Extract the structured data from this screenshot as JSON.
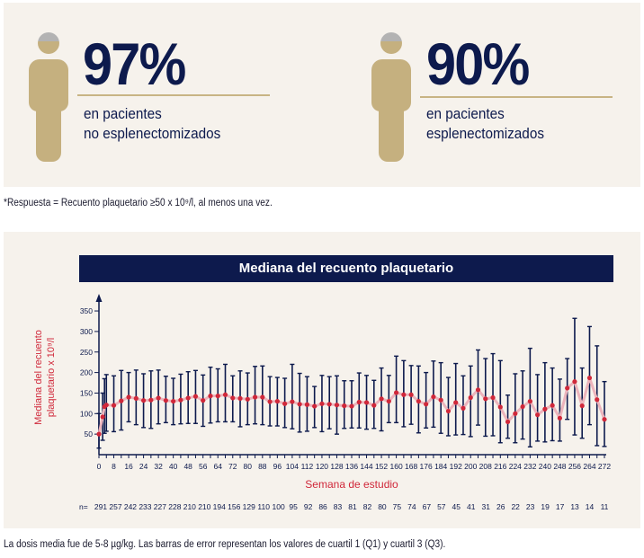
{
  "stats": [
    {
      "value": "97%",
      "line1": "en pacientes",
      "line2": "no esplenectomizados"
    },
    {
      "value": "90%",
      "line1": "en pacientes",
      "line2": "esplenectomizados"
    }
  ],
  "colors": {
    "navy": "#0d1a4d",
    "gold": "#c5b07f",
    "red": "#d0283a",
    "line": "#ecb4bc",
    "panel": "#f6f2ec"
  },
  "icons": {
    "person": "person-icon"
  },
  "footnote": "*Respuesta = Recuento plaquetario ≥50 x 10⁹/l, al menos una vez.",
  "bottom_note": "La dosis media fue de 5-8 µg/kg. Las barras de error representan los valores de cuartil 1 (Q1) y cuartil 3 (Q3).",
  "chart_data": {
    "type": "line",
    "title": "Mediana del recuento plaquetario",
    "ylabel_line1": "Mediana del recuento",
    "ylabel_line2": "plaquetario x 10⁹/l",
    "xlabel": "Semana de estudio",
    "ylim": [
      0,
      370
    ],
    "xlim": [
      0,
      272
    ],
    "yticks": [
      50,
      100,
      150,
      200,
      250,
      300,
      350
    ],
    "xticks": [
      0,
      8,
      16,
      24,
      32,
      40,
      48,
      56,
      64,
      72,
      80,
      88,
      96,
      104,
      112,
      120,
      128,
      136,
      144,
      152,
      160,
      168,
      176,
      184,
      192,
      200,
      208,
      216,
      224,
      232,
      240,
      248,
      256,
      264,
      272
    ],
    "x": [
      0,
      2,
      3,
      4,
      8,
      12,
      16,
      20,
      24,
      28,
      32,
      36,
      40,
      44,
      48,
      52,
      56,
      60,
      64,
      68,
      72,
      76,
      80,
      84,
      88,
      92,
      96,
      100,
      104,
      108,
      112,
      116,
      120,
      124,
      128,
      132,
      136,
      140,
      144,
      148,
      152,
      156,
      160,
      164,
      168,
      172,
      176,
      180,
      184,
      188,
      192,
      196,
      200,
      204,
      208,
      212,
      216,
      220,
      224,
      228,
      232,
      236,
      240,
      244,
      248,
      252,
      256,
      260,
      264,
      268,
      272
    ],
    "median": [
      50,
      92,
      117,
      121,
      120,
      131,
      140,
      137,
      132,
      133,
      138,
      132,
      130,
      133,
      138,
      142,
      132,
      143,
      143,
      146,
      138,
      137,
      135,
      140,
      140,
      129,
      130,
      124,
      129,
      123,
      122,
      118,
      124,
      123,
      121,
      119,
      118,
      128,
      127,
      120,
      136,
      130,
      151,
      146,
      146,
      130,
      123,
      141,
      133,
      106,
      127,
      113,
      139,
      158,
      136,
      139,
      116,
      80,
      100,
      117,
      130,
      97,
      111,
      120,
      89,
      162,
      178,
      119,
      187,
      134,
      86
    ],
    "q1": [
      16,
      35,
      52,
      57,
      56,
      60,
      80,
      73,
      66,
      64,
      75,
      78,
      73,
      75,
      76,
      76,
      69,
      77,
      80,
      80,
      80,
      68,
      73,
      75,
      73,
      70,
      70,
      66,
      63,
      55,
      57,
      66,
      56,
      63,
      50,
      64,
      65,
      65,
      62,
      64,
      58,
      78,
      78,
      68,
      74,
      53,
      65,
      67,
      52,
      46,
      48,
      49,
      44,
      72,
      45,
      46,
      29,
      40,
      29,
      38,
      19,
      33,
      31,
      34,
      33,
      86,
      48,
      40,
      73,
      22,
      20
    ],
    "q3": [
      100,
      150,
      185,
      195,
      192,
      205,
      200,
      206,
      197,
      204,
      206,
      191,
      186,
      196,
      202,
      205,
      194,
      213,
      209,
      220,
      192,
      204,
      199,
      215,
      216,
      190,
      188,
      186,
      220,
      198,
      190,
      166,
      193,
      190,
      192,
      180,
      180,
      199,
      193,
      181,
      211,
      193,
      240,
      229,
      217,
      216,
      200,
      228,
      224,
      188,
      222,
      192,
      216,
      255,
      234,
      246,
      229,
      145,
      197,
      204,
      259,
      195,
      224,
      211,
      184,
      234,
      332,
      211,
      312,
      265,
      178
    ],
    "n_prefix": "n=",
    "n": [
      "291",
      "257",
      "242",
      "233",
      "227",
      "228",
      "210",
      "210",
      "194",
      "156",
      "129",
      "110",
      "100",
      "95",
      "92",
      "86",
      "83",
      "81",
      "82",
      "80",
      "75",
      "74",
      "67",
      "57",
      "45",
      "41",
      "31",
      "26",
      "22",
      "23",
      "19",
      "17",
      "13",
      "14",
      "11"
    ],
    "grid": false,
    "legend": "none"
  }
}
